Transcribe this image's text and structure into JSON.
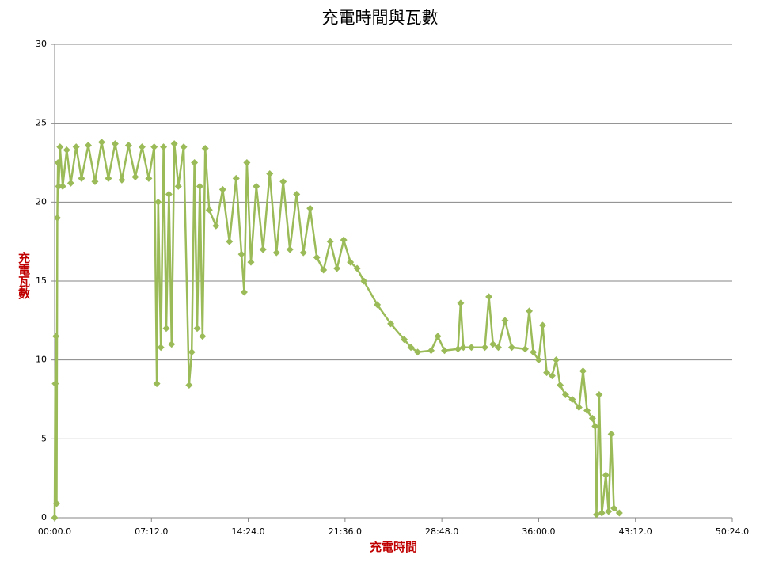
{
  "chart_data": {
    "type": "line",
    "title": "充電時間與瓦數",
    "x_label": "充電時間",
    "y_label": "充電瓦數",
    "x": [
      0,
      0.05,
      0.1,
      0.15,
      0.2,
      0.25,
      0.3,
      0.4,
      0.6,
      0.9,
      1.2,
      1.6,
      2,
      2.5,
      3,
      3.5,
      4,
      4.5,
      5,
      5.5,
      6,
      6.5,
      7,
      7.4,
      7.6,
      7.7,
      7.9,
      8.1,
      8.3,
      8.5,
      8.7,
      8.9,
      9.2,
      9.6,
      10,
      10.2,
      10.4,
      10.6,
      10.8,
      11,
      11.2,
      11.5,
      12,
      12.5,
      13,
      13.5,
      13.9,
      14.1,
      14.3,
      14.6,
      15,
      15.5,
      16,
      16.5,
      17,
      17.5,
      18,
      18.5,
      19,
      19.5,
      20,
      20.5,
      21,
      21.5,
      22,
      22.5,
      23,
      24,
      25,
      26,
      26.5,
      27,
      28,
      28.5,
      29,
      30,
      30.2,
      30.4,
      31,
      32,
      32.3,
      32.6,
      33,
      33.5,
      34,
      35,
      35.3,
      35.6,
      36,
      36.3,
      36.6,
      37,
      37.3,
      37.6,
      38,
      38.5,
      39,
      39.3,
      39.6,
      40,
      40.2,
      40.3,
      40.5,
      40.7,
      41,
      41.2,
      41.4,
      41.6,
      42
    ],
    "series": [
      {
        "color": "#9bbb59",
        "values": [
          0,
          8.5,
          11.5,
          0.9,
          19,
          22.5,
          21,
          23.5,
          21,
          23.3,
          21.2,
          23.5,
          21.5,
          23.6,
          21.3,
          23.8,
          21.5,
          23.7,
          21.4,
          23.6,
          21.6,
          23.5,
          21.5,
          23.5,
          8.5,
          20,
          10.8,
          23.5,
          12,
          20.5,
          11,
          23.7,
          21,
          23.5,
          8.4,
          10.5,
          22.5,
          12,
          21,
          11.5,
          23.4,
          19.5,
          18.5,
          20.8,
          17.5,
          21.5,
          16.7,
          14.3,
          22.5,
          16.2,
          21,
          17,
          21.8,
          16.8,
          21.3,
          17,
          20.5,
          16.8,
          19.6,
          16.5,
          15.7,
          17.5,
          15.8,
          17.6,
          16.2,
          15.8,
          15,
          13.5,
          12.3,
          11.3,
          10.8,
          10.5,
          10.6,
          11.5,
          10.6,
          10.7,
          13.6,
          10.8,
          10.8,
          10.8,
          14,
          11,
          10.8,
          12.5,
          10.8,
          10.7,
          13.1,
          10.5,
          10,
          12.2,
          9.2,
          9,
          10,
          8.4,
          7.8,
          7.5,
          7,
          9.3,
          6.8,
          6.3,
          5.8,
          0.2,
          7.8,
          0.3,
          2.7,
          0.4,
          5.3,
          0.6,
          0.3
        ]
      }
    ],
    "marker": "diamond",
    "xlim": [
      0,
      50.4
    ],
    "xticks": [
      {
        "value": 0,
        "label": "00:00.0"
      },
      {
        "value": 7.2,
        "label": "07:12.0"
      },
      {
        "value": 14.4,
        "label": "14:24.0"
      },
      {
        "value": 21.6,
        "label": "21:36.0"
      },
      {
        "value": 28.8,
        "label": "28:48.0"
      },
      {
        "value": 36,
        "label": "36:00.0"
      },
      {
        "value": 43.2,
        "label": "43:12.0"
      },
      {
        "value": 50.4,
        "label": "50:24.0"
      }
    ],
    "ylim": [
      0,
      30
    ],
    "yticks": [
      0,
      5,
      10,
      15,
      20,
      25,
      30
    ],
    "grid": true
  }
}
